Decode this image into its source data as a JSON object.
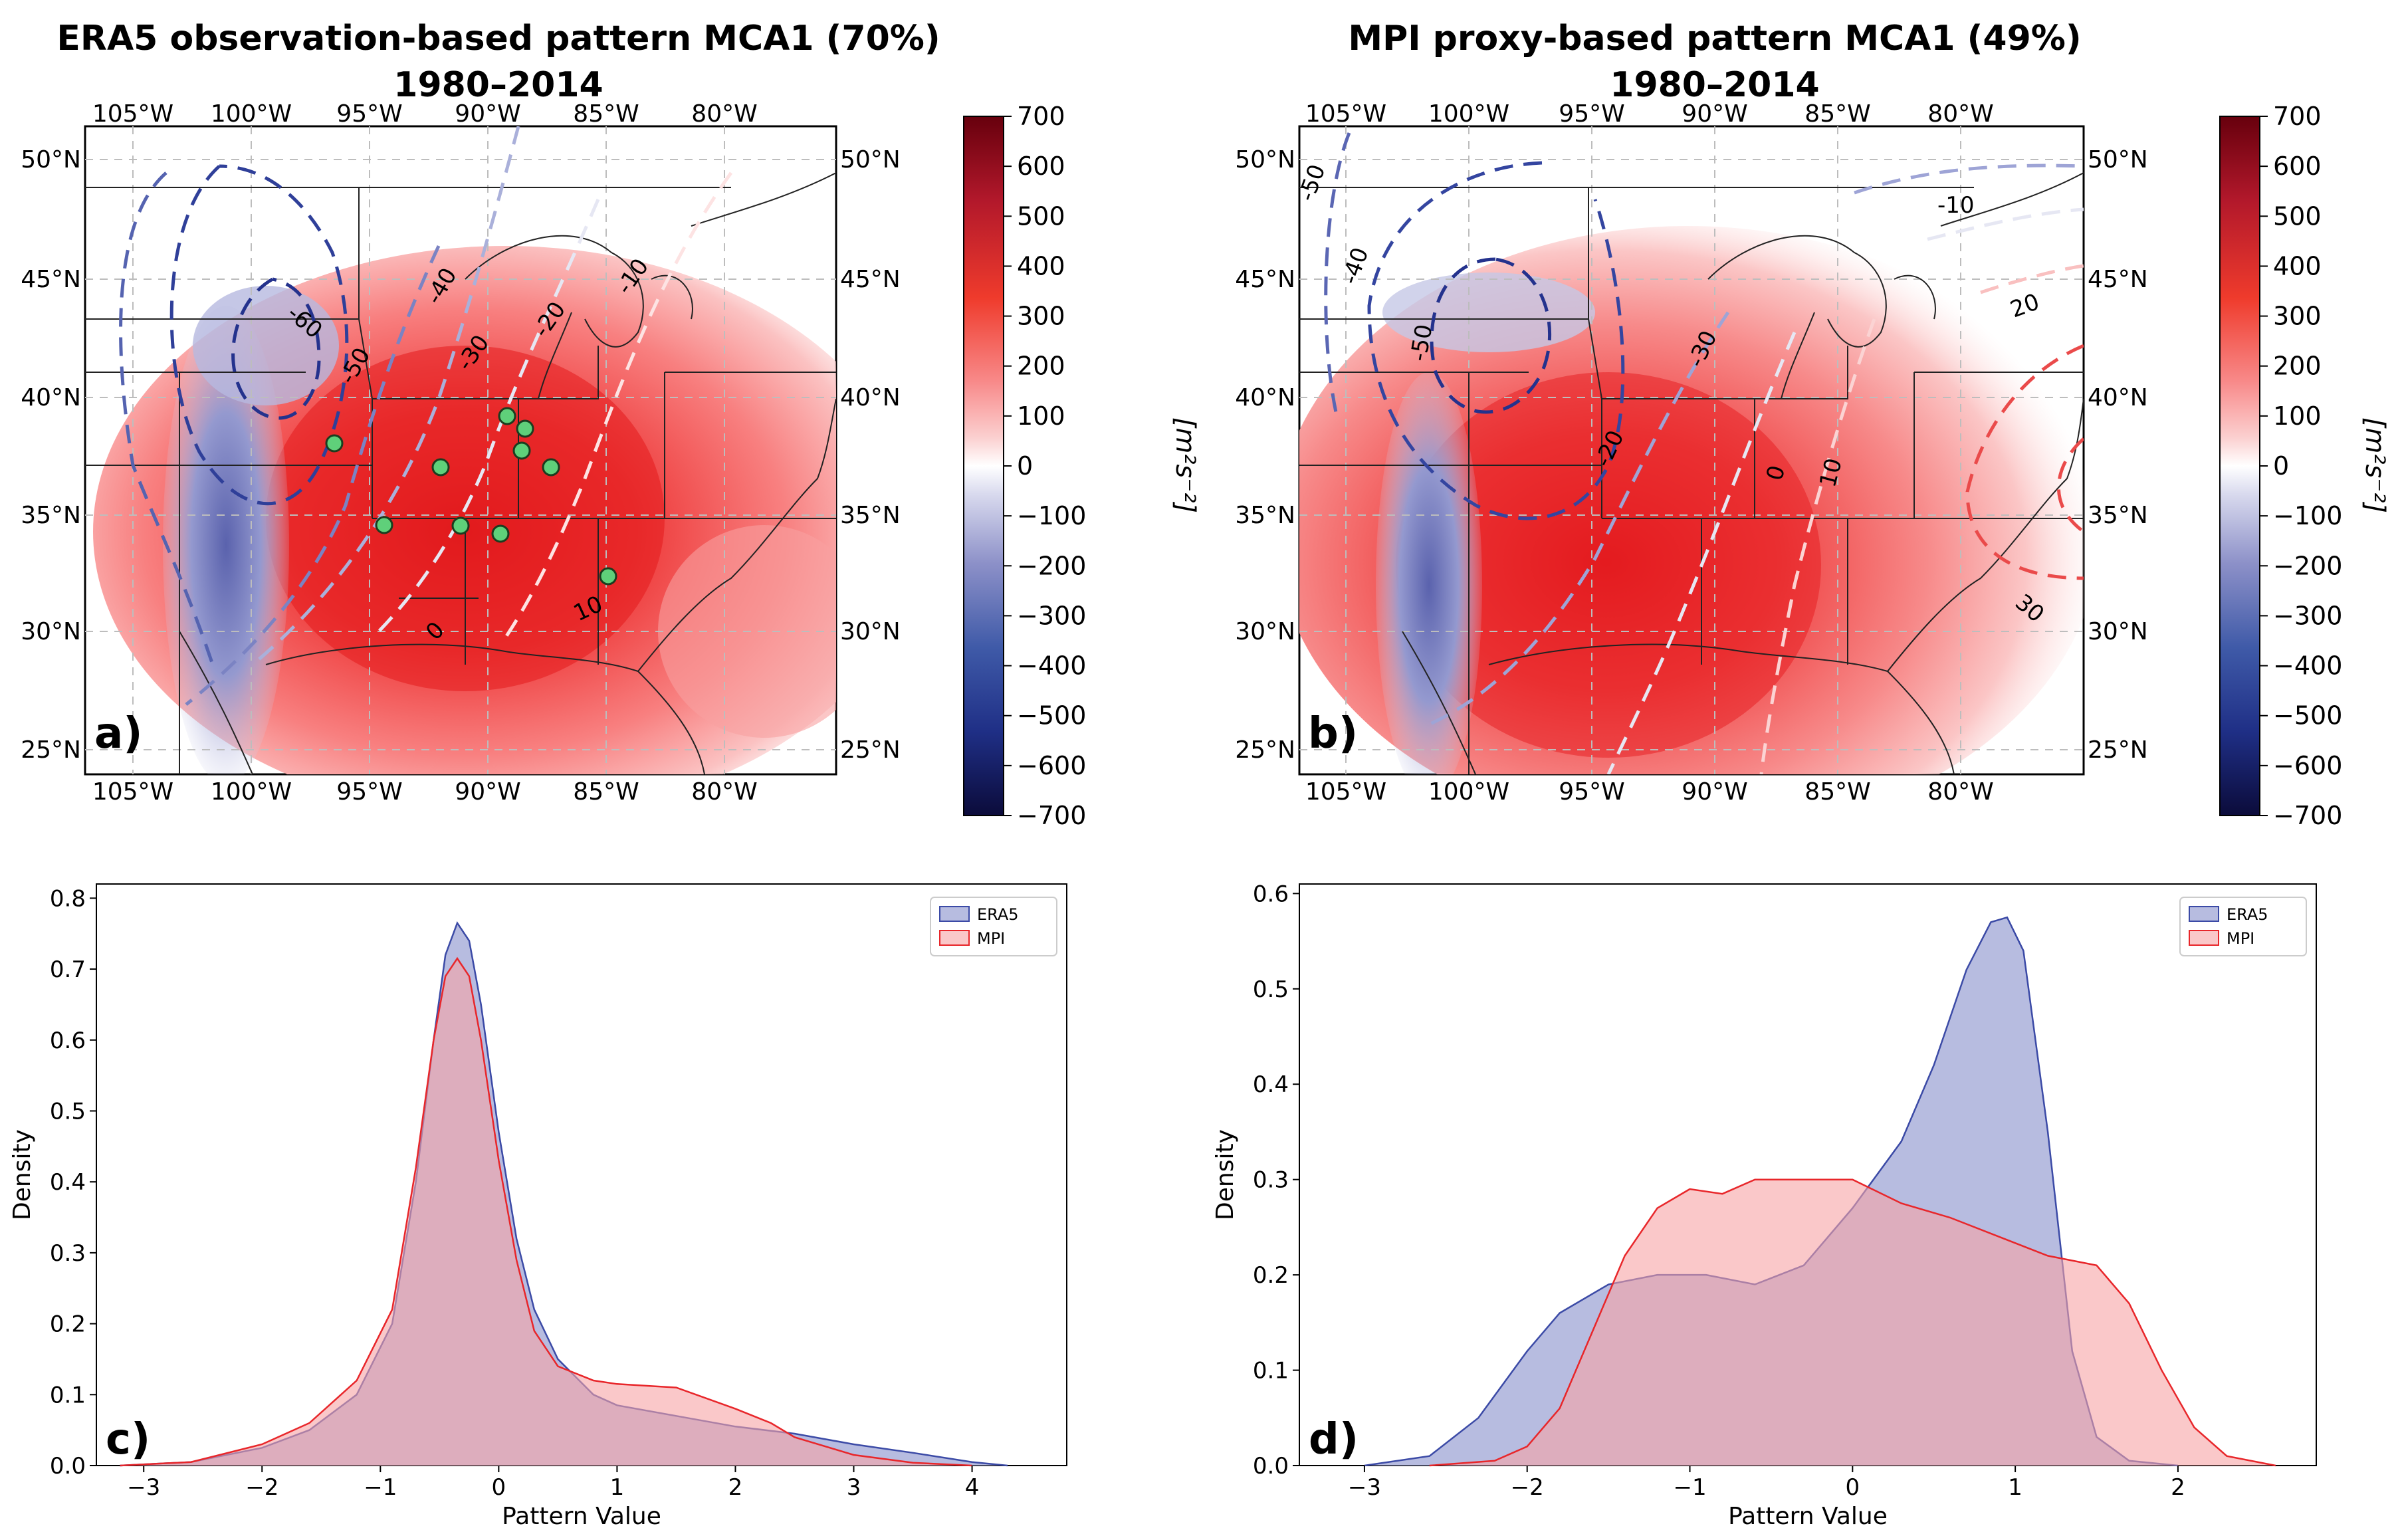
{
  "chart_data": [
    {
      "type": "heatmap",
      "panel": "a)",
      "title": "ERA5 observation-based pattern MCA1 (70%)",
      "subtitle": "1980–2014",
      "lon_ticks": [
        "105°W",
        "100°W",
        "95°W",
        "90°W",
        "85°W",
        "80°W"
      ],
      "lat_ticks": [
        "50°N",
        "45°N",
        "40°N",
        "35°N",
        "30°N",
        "25°N"
      ],
      "contour_levels": [
        "-60",
        "-50",
        "-40",
        "-30",
        "-20",
        "-10",
        "0",
        "10"
      ],
      "station_markers": 10
    },
    {
      "type": "heatmap",
      "panel": "b)",
      "title": "MPI proxy-based pattern MCA1 (49%)",
      "subtitle": "1980–2014",
      "lon_ticks": [
        "105°W",
        "100°W",
        "95°W",
        "90°W",
        "85°W",
        "80°W"
      ],
      "lat_ticks": [
        "50°N",
        "45°N",
        "40°N",
        "35°N",
        "30°N",
        "25°N"
      ],
      "contour_levels": [
        "-50",
        "-40",
        "-30",
        "-20",
        "-10",
        "0",
        "10",
        "20",
        "30"
      ]
    },
    {
      "type": "area",
      "panel": "c)",
      "xlabel": "Pattern Value",
      "ylabel": "Density",
      "xlim": [
        -3.4,
        4.8
      ],
      "ylim": [
        0,
        0.82
      ],
      "xticks": [
        -3,
        -2,
        -1,
        0,
        1,
        2,
        3,
        4
      ],
      "yticks": [
        0.0,
        0.1,
        0.2,
        0.3,
        0.4,
        0.5,
        0.6,
        0.7,
        0.8
      ],
      "legend_position": "top-right",
      "series": [
        {
          "name": "ERA5",
          "x": [
            -3.2,
            -2.6,
            -2.0,
            -1.6,
            -1.2,
            -0.9,
            -0.7,
            -0.55,
            -0.45,
            -0.35,
            -0.25,
            -0.15,
            0,
            0.15,
            0.3,
            0.5,
            0.8,
            1.0,
            1.5,
            2.0,
            2.5,
            3.0,
            3.5,
            4.0,
            4.3
          ],
          "values": [
            0,
            0.005,
            0.025,
            0.05,
            0.1,
            0.2,
            0.4,
            0.6,
            0.72,
            0.765,
            0.74,
            0.65,
            0.47,
            0.32,
            0.22,
            0.15,
            0.1,
            0.085,
            0.07,
            0.055,
            0.045,
            0.03,
            0.018,
            0.005,
            0
          ]
        },
        {
          "name": "MPI",
          "x": [
            -3.2,
            -2.6,
            -2.0,
            -1.6,
            -1.2,
            -0.9,
            -0.7,
            -0.55,
            -0.45,
            -0.35,
            -0.25,
            -0.15,
            0,
            0.15,
            0.3,
            0.5,
            0.8,
            1.0,
            1.5,
            2.0,
            2.3,
            2.5,
            3.0,
            3.5,
            4.0
          ],
          "values": [
            0,
            0.005,
            0.03,
            0.06,
            0.12,
            0.22,
            0.42,
            0.6,
            0.69,
            0.715,
            0.69,
            0.6,
            0.43,
            0.29,
            0.19,
            0.14,
            0.12,
            0.115,
            0.11,
            0.08,
            0.06,
            0.04,
            0.015,
            0.004,
            0
          ]
        }
      ]
    },
    {
      "type": "area",
      "panel": "d)",
      "xlabel": "Pattern Value",
      "ylabel": "Density",
      "xlim": [
        -3.4,
        2.85
      ],
      "ylim": [
        0,
        0.61
      ],
      "xticks": [
        -3,
        -2,
        -1,
        0,
        1,
        2
      ],
      "yticks": [
        0.0,
        0.1,
        0.2,
        0.3,
        0.4,
        0.5,
        0.6
      ],
      "legend_position": "top-right",
      "series": [
        {
          "name": "ERA5",
          "x": [
            -3.0,
            -2.6,
            -2.3,
            -2.0,
            -1.8,
            -1.5,
            -1.2,
            -0.9,
            -0.6,
            -0.3,
            0,
            0.3,
            0.5,
            0.7,
            0.85,
            0.95,
            1.05,
            1.2,
            1.35,
            1.5,
            1.7,
            2.0
          ],
          "values": [
            0,
            0.01,
            0.05,
            0.12,
            0.16,
            0.19,
            0.2,
            0.2,
            0.19,
            0.21,
            0.27,
            0.34,
            0.42,
            0.52,
            0.57,
            0.575,
            0.54,
            0.35,
            0.12,
            0.03,
            0.005,
            0
          ]
        },
        {
          "name": "MPI",
          "x": [
            -2.6,
            -2.2,
            -2.0,
            -1.8,
            -1.6,
            -1.4,
            -1.2,
            -1.0,
            -0.8,
            -0.6,
            -0.3,
            0,
            0.3,
            0.6,
            0.9,
            1.2,
            1.5,
            1.7,
            1.9,
            2.1,
            2.3,
            2.6
          ],
          "values": [
            0,
            0.005,
            0.02,
            0.06,
            0.14,
            0.22,
            0.27,
            0.29,
            0.285,
            0.3,
            0.3,
            0.3,
            0.275,
            0.26,
            0.24,
            0.22,
            0.21,
            0.17,
            0.1,
            0.04,
            0.01,
            0
          ]
        }
      ]
    }
  ],
  "colorbar": {
    "ticks": [
      "700",
      "600",
      "500",
      "400",
      "300",
      "200",
      "100",
      "0",
      "−100",
      "−200",
      "−300",
      "−400",
      "−500",
      "−600",
      "−700"
    ],
    "unit": "[m²s⁻²]"
  },
  "colors": {
    "era5_line": "#3b4aa6",
    "era5_fill": "#9fa6d6",
    "mpi_line": "#e8262a",
    "mpi_fill": "#f7a3a5"
  }
}
